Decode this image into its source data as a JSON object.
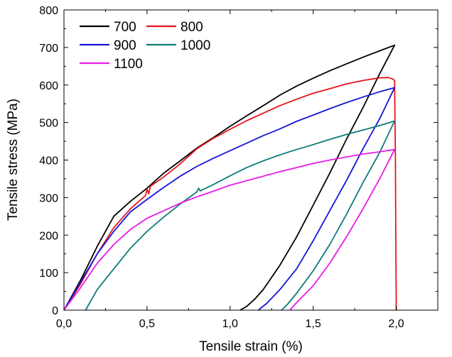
{
  "chart_data": {
    "type": "line",
    "title": "",
    "xlabel": "Tensile strain (%)",
    "ylabel": "Tensile stress (MPa)",
    "xlim": [
      0.0,
      2.25
    ],
    "ylim": [
      0,
      800
    ],
    "x_ticks": [
      0.0,
      0.5,
      1.0,
      1.5,
      2.0
    ],
    "x_tick_labels": [
      "0,0",
      "0,5",
      "1,0",
      "1,5",
      "2,0"
    ],
    "y_ticks": [
      0,
      100,
      200,
      300,
      400,
      500,
      600,
      700,
      800
    ],
    "y_tick_labels": [
      "0",
      "100",
      "200",
      "300",
      "400",
      "500",
      "600",
      "700",
      "800"
    ],
    "grid": false,
    "legend_position": "top-left",
    "series": [
      {
        "name": "700",
        "color": "#000000",
        "points": [
          [
            0.0,
            0
          ],
          [
            0.1,
            80
          ],
          [
            0.2,
            170
          ],
          [
            0.3,
            250
          ],
          [
            0.35,
            270
          ],
          [
            0.4,
            290
          ],
          [
            0.5,
            325
          ],
          [
            0.6,
            365
          ],
          [
            0.7,
            398
          ],
          [
            0.8,
            432
          ],
          [
            0.9,
            460
          ],
          [
            1.0,
            490
          ],
          [
            1.1,
            518
          ],
          [
            1.2,
            545
          ],
          [
            1.3,
            573
          ],
          [
            1.4,
            597
          ],
          [
            1.5,
            618
          ],
          [
            1.6,
            638
          ],
          [
            1.7,
            656
          ],
          [
            1.8,
            674
          ],
          [
            1.9,
            691
          ],
          [
            1.99,
            706
          ],
          [
            1.9,
            630
          ],
          [
            1.8,
            540
          ],
          [
            1.7,
            455
          ],
          [
            1.6,
            365
          ],
          [
            1.5,
            280
          ],
          [
            1.4,
            195
          ],
          [
            1.3,
            120
          ],
          [
            1.2,
            55
          ],
          [
            1.15,
            30
          ],
          [
            1.1,
            10
          ],
          [
            1.06,
            0
          ]
        ]
      },
      {
        "name": "800",
        "color": "#e8141a",
        "points": [
          [
            0.0,
            0
          ],
          [
            0.1,
            70
          ],
          [
            0.2,
            150
          ],
          [
            0.3,
            220
          ],
          [
            0.4,
            270
          ],
          [
            0.49,
            305
          ],
          [
            0.5,
            322
          ],
          [
            0.51,
            310
          ],
          [
            0.52,
            330
          ],
          [
            0.6,
            355
          ],
          [
            0.7,
            390
          ],
          [
            0.8,
            430
          ],
          [
            0.9,
            458
          ],
          [
            1.0,
            482
          ],
          [
            1.1,
            505
          ],
          [
            1.2,
            525
          ],
          [
            1.3,
            545
          ],
          [
            1.4,
            562
          ],
          [
            1.5,
            578
          ],
          [
            1.6,
            590
          ],
          [
            1.7,
            603
          ],
          [
            1.8,
            612
          ],
          [
            1.9,
            619
          ],
          [
            1.95,
            620
          ],
          [
            1.98,
            616
          ],
          [
            1.99,
            612
          ],
          [
            1.995,
            400
          ],
          [
            1.997,
            200
          ],
          [
            2.0,
            0
          ]
        ]
      },
      {
        "name": "900",
        "color": "#1515d8",
        "points": [
          [
            0.0,
            0
          ],
          [
            0.1,
            75
          ],
          [
            0.2,
            150
          ],
          [
            0.3,
            210
          ],
          [
            0.4,
            262
          ],
          [
            0.5,
            295
          ],
          [
            0.6,
            327
          ],
          [
            0.7,
            357
          ],
          [
            0.8,
            383
          ],
          [
            0.9,
            405
          ],
          [
            1.0,
            425
          ],
          [
            1.1,
            445
          ],
          [
            1.2,
            465
          ],
          [
            1.3,
            483
          ],
          [
            1.4,
            503
          ],
          [
            1.5,
            520
          ],
          [
            1.6,
            537
          ],
          [
            1.7,
            553
          ],
          [
            1.8,
            568
          ],
          [
            1.9,
            582
          ],
          [
            1.99,
            593
          ],
          [
            1.9,
            510
          ],
          [
            1.8,
            430
          ],
          [
            1.7,
            345
          ],
          [
            1.6,
            265
          ],
          [
            1.5,
            185
          ],
          [
            1.4,
            110
          ],
          [
            1.3,
            55
          ],
          [
            1.22,
            18
          ],
          [
            1.17,
            0
          ]
        ]
      },
      {
        "name": "1000",
        "color": "#0e7c78",
        "points": [
          [
            0.13,
            0
          ],
          [
            0.2,
            55
          ],
          [
            0.3,
            110
          ],
          [
            0.4,
            165
          ],
          [
            0.5,
            210
          ],
          [
            0.6,
            248
          ],
          [
            0.7,
            283
          ],
          [
            0.8,
            315
          ],
          [
            0.81,
            325
          ],
          [
            0.82,
            318
          ],
          [
            0.9,
            335
          ],
          [
            1.0,
            358
          ],
          [
            1.1,
            380
          ],
          [
            1.2,
            398
          ],
          [
            1.3,
            414
          ],
          [
            1.4,
            428
          ],
          [
            1.5,
            441
          ],
          [
            1.6,
            455
          ],
          [
            1.7,
            468
          ],
          [
            1.8,
            480
          ],
          [
            1.9,
            492
          ],
          [
            1.99,
            504
          ],
          [
            1.9,
            420
          ],
          [
            1.8,
            340
          ],
          [
            1.7,
            255
          ],
          [
            1.6,
            175
          ],
          [
            1.5,
            105
          ],
          [
            1.4,
            45
          ],
          [
            1.35,
            18
          ],
          [
            1.31,
            0
          ]
        ]
      },
      {
        "name": "1100",
        "color": "#e81be8",
        "points": [
          [
            0.0,
            0
          ],
          [
            0.1,
            60
          ],
          [
            0.2,
            125
          ],
          [
            0.3,
            175
          ],
          [
            0.4,
            215
          ],
          [
            0.5,
            245
          ],
          [
            0.6,
            265
          ],
          [
            0.7,
            285
          ],
          [
            0.8,
            302
          ],
          [
            0.9,
            317
          ],
          [
            1.0,
            333
          ],
          [
            1.1,
            345
          ],
          [
            1.2,
            357
          ],
          [
            1.3,
            369
          ],
          [
            1.4,
            380
          ],
          [
            1.5,
            391
          ],
          [
            1.6,
            400
          ],
          [
            1.7,
            408
          ],
          [
            1.8,
            416
          ],
          [
            1.9,
            422
          ],
          [
            1.99,
            428
          ],
          [
            1.9,
            350
          ],
          [
            1.8,
            270
          ],
          [
            1.7,
            195
          ],
          [
            1.6,
            125
          ],
          [
            1.5,
            65
          ],
          [
            1.4,
            20
          ],
          [
            1.36,
            0
          ]
        ]
      }
    ]
  }
}
